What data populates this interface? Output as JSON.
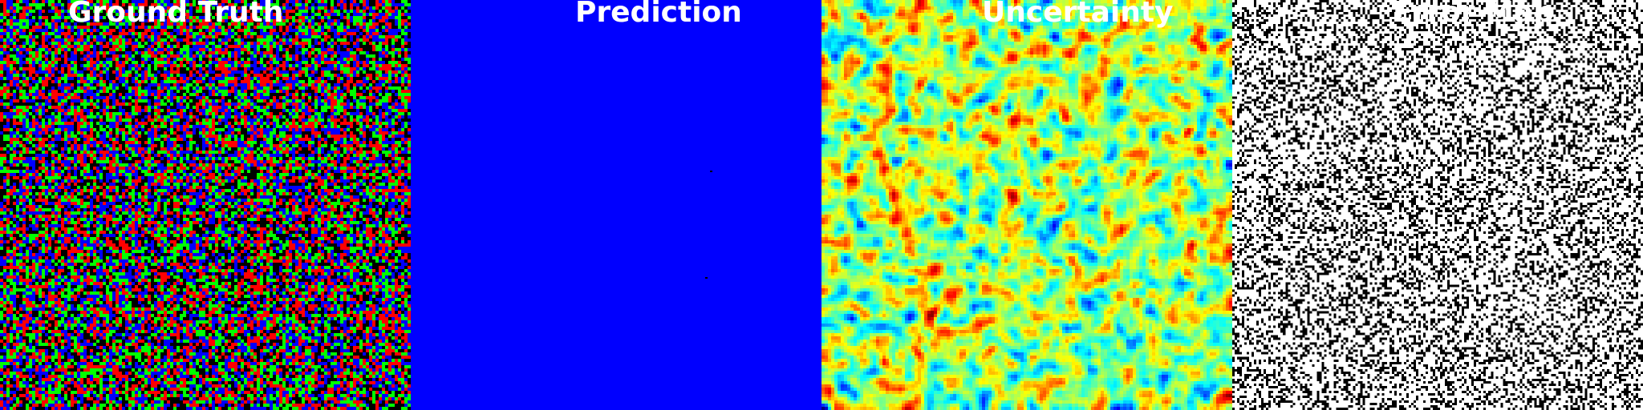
{
  "panels": [
    {
      "id": "ground_truth",
      "title": "Ground Truth"
    },
    {
      "id": "prediction",
      "title": "Prediction"
    },
    {
      "id": "uncertainty",
      "title": "Uncertainty"
    },
    {
      "id": "error_map",
      "title": "Error Map"
    }
  ],
  "colors": {
    "ground_truth_palette": [
      "#ff0000",
      "#00ff00",
      "#0000ff",
      "#000000"
    ],
    "prediction_fill": "#0000ff",
    "uncertainty_colormap": "jet",
    "error_map_palette": [
      "#ffffff",
      "#000000"
    ],
    "title_text": "#ffffff"
  }
}
